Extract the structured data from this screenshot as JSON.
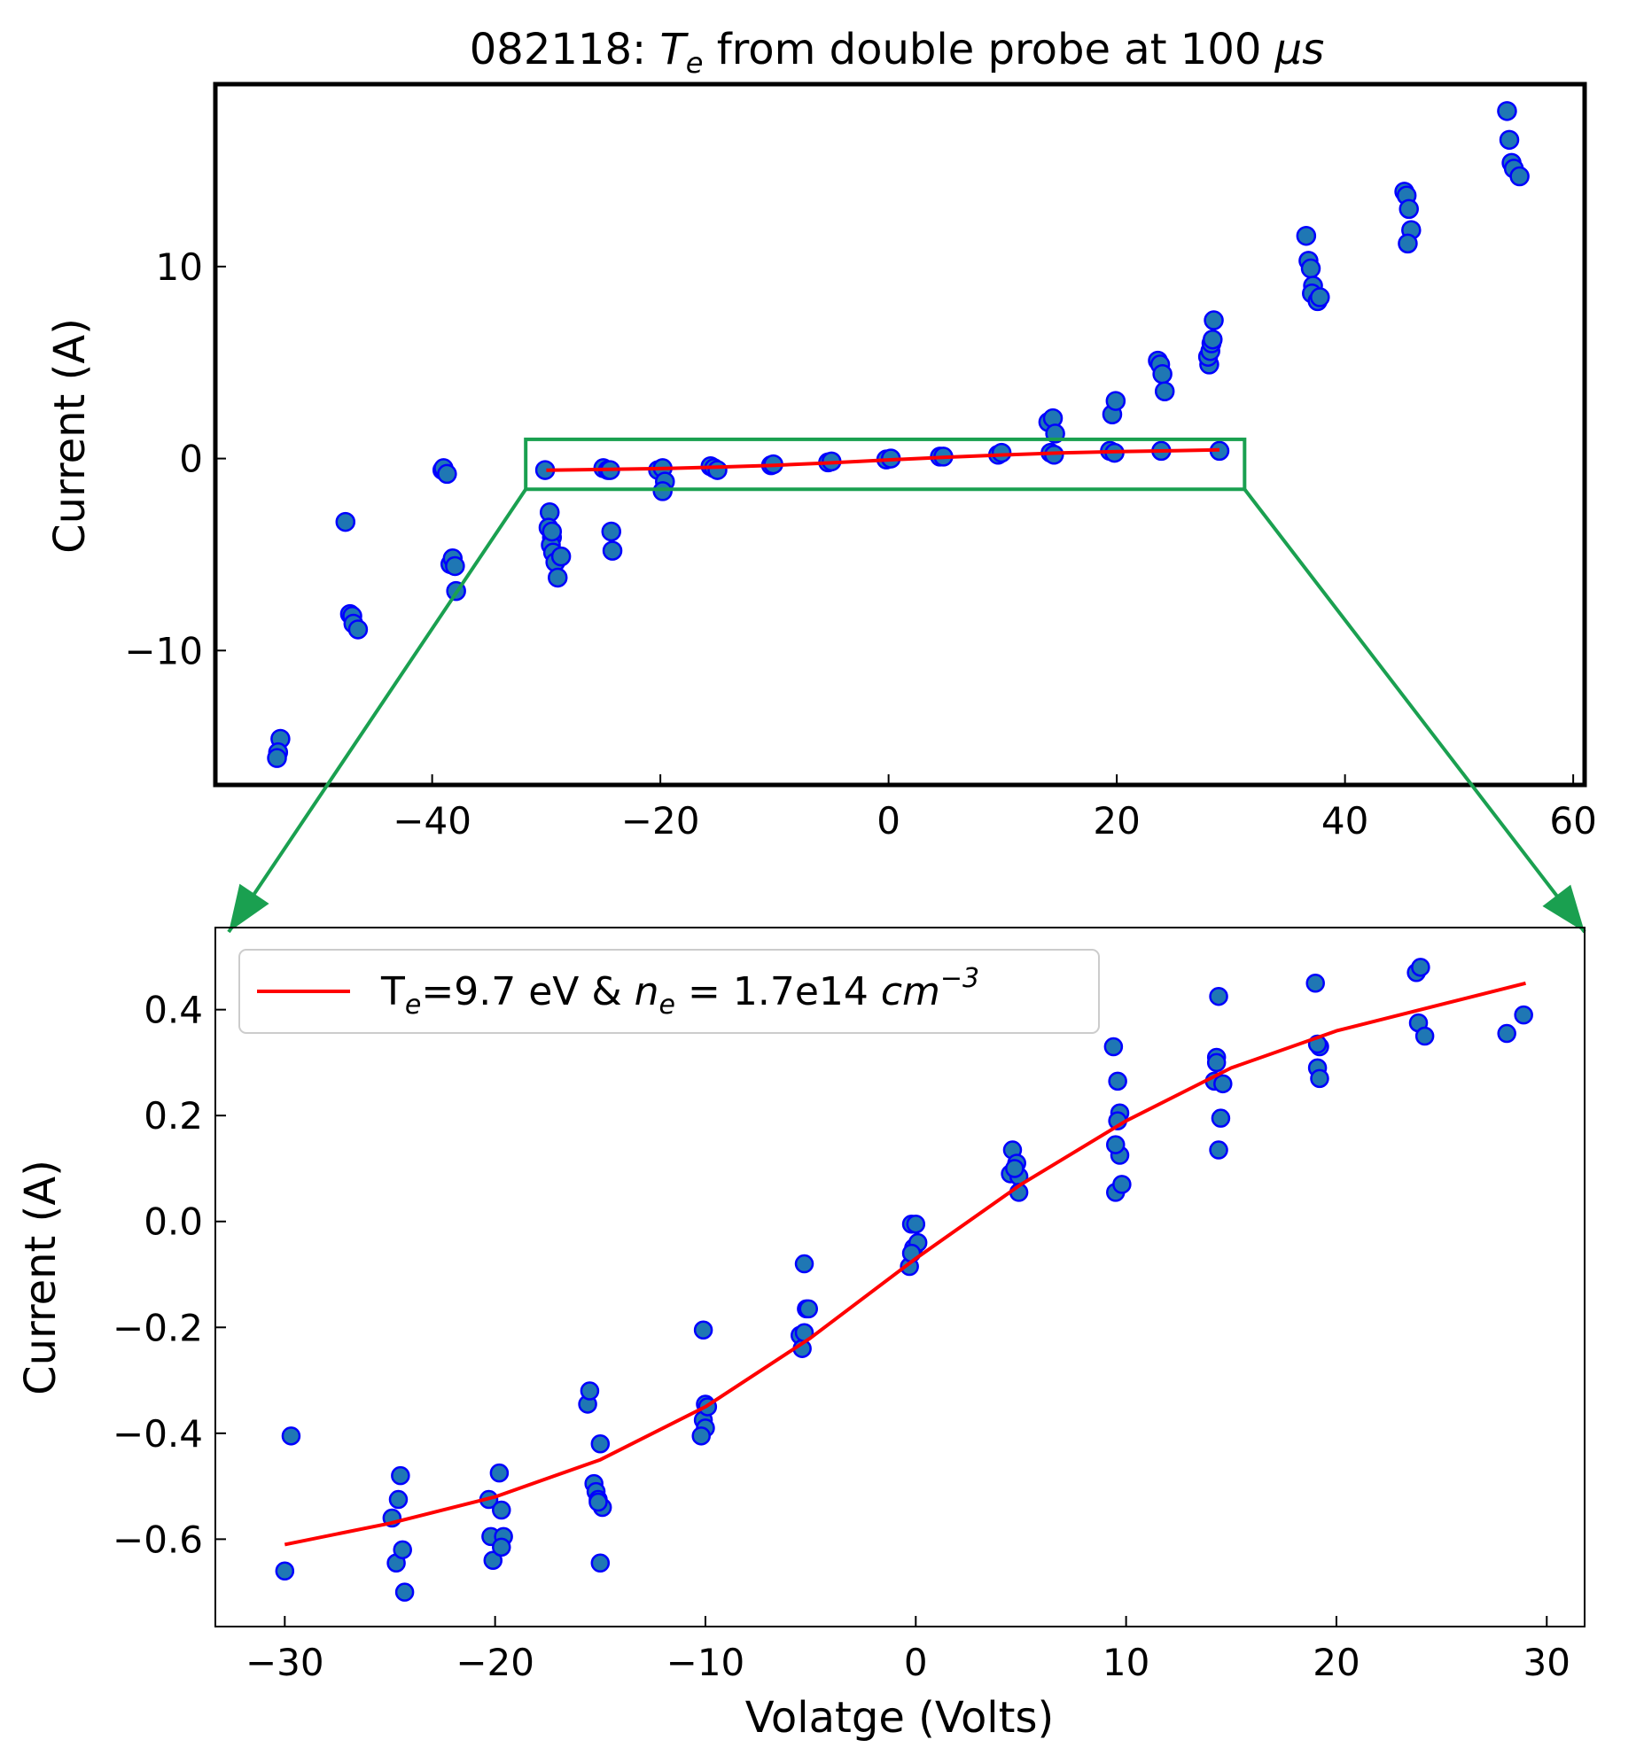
{
  "chart_data": [
    {
      "type": "scatter",
      "title": {
        "prefix": "082118: ",
        "sym": "T",
        "sub": "e",
        "middle": " from double probe at 100 ",
        "unit_italic": "μs"
      },
      "xlabel": "",
      "ylabel": "Current (A)",
      "xlim": [
        -59,
        61
      ],
      "ylim": [
        -17,
        19.5
      ],
      "xticks": [
        -40,
        -20,
        0,
        20,
        40,
        60
      ],
      "yticks": [
        -10,
        0,
        10
      ],
      "xtick_labels": [
        "−40",
        "−20",
        "0",
        "20",
        "40",
        "60"
      ],
      "ytick_labels": [
        "−10",
        "0",
        "10"
      ],
      "zoom_box": {
        "x": [
          -31.8,
          31.2
        ],
        "y": [
          -1.6,
          1.0
        ]
      },
      "scatter": {
        "x": [
          -53.3,
          -53.5,
          -53.6,
          -47.6,
          -47.2,
          -47.0,
          -46.9,
          -46.5,
          -39.1,
          -39.0,
          -38.7,
          -38.4,
          -38.2,
          -38.0,
          -37.9,
          -30.1,
          -29.7,
          -29.8,
          -29.5,
          -29.6,
          -29.4,
          -29.5,
          -29.2,
          -29.0,
          -28.7,
          -25.0,
          -24.6,
          -24.4,
          -24.3,
          -24.2,
          -20.2,
          -19.8,
          -19.6,
          -19.8,
          -15.6,
          -15.3,
          -15.0,
          -10.3,
          -10.1,
          -5.3,
          -5.0,
          -0.2,
          0.2,
          4.5,
          4.8,
          9.6,
          9.9,
          14.0,
          14.4,
          14.6,
          14.2,
          14.5,
          19.4,
          19.8,
          19.6,
          19.9,
          23.6,
          23.8,
          24.0,
          24.2,
          23.9,
          28.1,
          28.0,
          28.2,
          28.3,
          28.4,
          28.5,
          29.0,
          36.6,
          36.8,
          37.0,
          37.2,
          37.1,
          37.6,
          37.8,
          45.2,
          45.4,
          45.6,
          45.8,
          45.5,
          54.2,
          54.4,
          54.6,
          54.8,
          55.3
        ],
        "y": [
          -14.6,
          -15.3,
          -15.6,
          -3.3,
          -8.1,
          -8.2,
          -8.6,
          -8.9,
          -0.6,
          -0.5,
          -0.8,
          -5.5,
          -5.2,
          -5.6,
          -6.9,
          -0.6,
          -2.8,
          -3.6,
          -4.1,
          -4.5,
          -4.9,
          -3.8,
          -5.4,
          -6.2,
          -5.1,
          -0.5,
          -0.6,
          -0.6,
          -3.8,
          -4.8,
          -0.6,
          -0.5,
          -1.2,
          -1.7,
          -0.4,
          -0.5,
          -0.6,
          -0.35,
          -0.3,
          -0.2,
          -0.15,
          -0.05,
          0.0,
          0.1,
          0.1,
          0.2,
          0.3,
          1.9,
          2.1,
          1.3,
          0.3,
          0.2,
          0.4,
          0.3,
          2.3,
          3.0,
          5.1,
          4.9,
          4.4,
          3.5,
          0.4,
          4.9,
          5.3,
          5.6,
          6.0,
          6.2,
          7.2,
          0.4,
          11.6,
          10.3,
          9.9,
          9.0,
          8.6,
          8.2,
          8.4,
          13.9,
          13.7,
          13.0,
          11.9,
          11.2,
          18.1,
          16.6,
          15.4,
          15.1,
          14.7
        ]
      },
      "fit": {
        "x": [
          -30,
          -25,
          -20,
          -15,
          -10,
          -5,
          0,
          5,
          10,
          15,
          20,
          25,
          29
        ],
        "y": [
          -0.61,
          -0.57,
          -0.52,
          -0.45,
          -0.35,
          -0.22,
          -0.07,
          0.07,
          0.19,
          0.29,
          0.36,
          0.41,
          0.45
        ]
      }
    },
    {
      "type": "scatter",
      "xlabel": "Volatge (Volts)",
      "ylabel": "Current (A)",
      "xlim": [
        -33.3,
        31.8
      ],
      "ylim": [
        -0.765,
        0.555
      ],
      "xticks": [
        -30,
        -20,
        -10,
        0,
        10,
        20,
        30
      ],
      "yticks": [
        -0.6,
        -0.4,
        -0.2,
        0.0,
        0.2,
        0.4
      ],
      "xtick_labels": [
        "−30",
        "−20",
        "−10",
        "0",
        "10",
        "20",
        "30"
      ],
      "ytick_labels": [
        "−0.6",
        "−0.4",
        "−0.2",
        "0.0",
        "0.2",
        "0.4"
      ],
      "legend": {
        "sym": "T",
        "sub": "e",
        "mid": "=9.7 eV & ",
        "n": "n",
        "nsub": "e",
        "eq": " = 1.7e14 ",
        "unit": "cm",
        "exp": "−3",
        "location": "upper-left"
      },
      "scatter": {
        "x": [
          -30,
          -29.7,
          -24.9,
          -24.7,
          -24.6,
          -24.5,
          -24.4,
          -24.3,
          -20.3,
          -20.2,
          -20.1,
          -19.8,
          -19.7,
          -19.6,
          -19.7,
          -15.6,
          -15.5,
          -15.3,
          -15.2,
          -15.1,
          -15.0,
          -14.9,
          -15.1,
          -15.0,
          -10.1,
          -10.0,
          -10.1,
          -10.0,
          -9.9,
          -10.2,
          -5.5,
          -5.4,
          -5.3,
          -5.2,
          -5.1,
          -5.3,
          -0.3,
          -0.2,
          -0.1,
          0.0,
          0.1,
          -0.2,
          4.5,
          4.6,
          4.8,
          4.9,
          4.9,
          4.7,
          9.4,
          9.5,
          9.6,
          9.7,
          9.8,
          9.5,
          9.7,
          9.6,
          14.2,
          14.3,
          14.4,
          14.5,
          14.4,
          14.6,
          14.3,
          19.0,
          19.1,
          19.2,
          19.2,
          19.1,
          23.8,
          23.9,
          24.0,
          24.2,
          28.1,
          28.9
        ],
        "y": [
          -0.66,
          -0.405,
          -0.56,
          -0.645,
          -0.525,
          -0.48,
          -0.62,
          -0.7,
          -0.525,
          -0.595,
          -0.64,
          -0.475,
          -0.545,
          -0.595,
          -0.615,
          -0.345,
          -0.32,
          -0.495,
          -0.51,
          -0.525,
          -0.42,
          -0.54,
          -0.53,
          -0.645,
          -0.205,
          -0.345,
          -0.375,
          -0.39,
          -0.35,
          -0.405,
          -0.215,
          -0.24,
          -0.08,
          -0.165,
          -0.165,
          -0.21,
          -0.085,
          -0.005,
          -0.05,
          -0.005,
          -0.04,
          -0.06,
          0.09,
          0.135,
          0.11,
          0.085,
          0.055,
          0.1,
          0.33,
          0.055,
          0.265,
          0.125,
          0.07,
          0.145,
          0.205,
          0.19,
          0.265,
          0.31,
          0.425,
          0.195,
          0.135,
          0.26,
          0.3,
          0.45,
          0.29,
          0.27,
          0.33,
          0.335,
          0.47,
          0.375,
          0.48,
          0.35,
          0.355,
          0.39
        ]
      },
      "fit": {
        "x": [
          -30,
          -25,
          -20,
          -15,
          -10,
          -5,
          0,
          5,
          10,
          15,
          20,
          25,
          29
        ],
        "y": [
          -0.61,
          -0.57,
          -0.52,
          -0.45,
          -0.35,
          -0.22,
          -0.07,
          0.07,
          0.19,
          0.29,
          0.36,
          0.41,
          0.45
        ]
      }
    }
  ],
  "colors": {
    "points": "#1f77b4",
    "point_edge": "#0000ff",
    "fit": "#ff0000",
    "zoom": "#1aa050"
  }
}
